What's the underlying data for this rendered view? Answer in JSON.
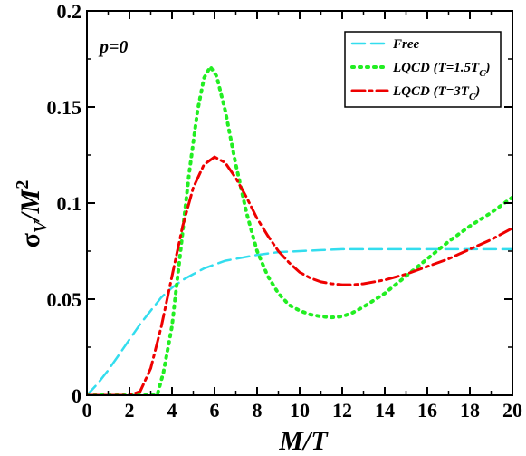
{
  "chart_data": {
    "type": "line",
    "xlabel": "M/T",
    "ylabel": {
      "base": "σ",
      "sub": "V",
      "mid": "/M",
      "sup": "2"
    },
    "annotation": "p=0",
    "xlim": [
      0,
      20
    ],
    "ylim": [
      0,
      0.2
    ],
    "x_ticks": [
      0,
      2,
      4,
      6,
      8,
      10,
      12,
      14,
      16,
      18,
      20
    ],
    "x_tick_labels": [
      "0",
      "2",
      "4",
      "6",
      "8",
      "10",
      "12",
      "14",
      "16",
      "18",
      "20"
    ],
    "y_ticks": [
      0,
      0.05,
      0.1,
      0.15,
      0.2
    ],
    "y_tick_labels": [
      "0",
      "0.05",
      "0.1",
      "0.15",
      "0.2"
    ],
    "grid": false,
    "legend_position": "top-right",
    "series": [
      {
        "name": "Free",
        "legend": {
          "main": "Free",
          "sub": "",
          "tail": ""
        },
        "color": "#33ddee",
        "style": "dashed",
        "x": [
          0,
          0.5,
          1,
          1.5,
          2,
          2.5,
          3,
          3.5,
          4,
          4.5,
          5,
          5.5,
          6,
          6.5,
          7,
          8,
          9,
          10,
          11,
          12,
          13,
          14,
          15,
          16,
          17,
          18,
          19,
          20
        ],
        "y": [
          0,
          0.006,
          0.013,
          0.021,
          0.029,
          0.037,
          0.044,
          0.051,
          0.056,
          0.06,
          0.063,
          0.066,
          0.068,
          0.07,
          0.071,
          0.073,
          0.0745,
          0.075,
          0.0755,
          0.076,
          0.076,
          0.076,
          0.076,
          0.076,
          0.076,
          0.076,
          0.076,
          0.076
        ]
      },
      {
        "name": "LQCD (T=1.5Tc)",
        "legend": {
          "main": "LQCD (T=1.5T",
          "sub": "C",
          "tail": ")"
        },
        "color": "#22ee22",
        "style": "dotted",
        "x": [
          0,
          3.3,
          3.6,
          4.0,
          4.4,
          4.8,
          5.2,
          5.5,
          5.8,
          6.1,
          6.5,
          7.0,
          7.5,
          8.0,
          8.5,
          9.0,
          9.5,
          10.0,
          10.5,
          11.0,
          11.5,
          12.0,
          12.5,
          13.0,
          14.0,
          15.0,
          16.0,
          17.0,
          18.0,
          19.0,
          20.0
        ],
        "y": [
          0,
          0,
          0.012,
          0.036,
          0.075,
          0.115,
          0.148,
          0.165,
          0.171,
          0.166,
          0.148,
          0.12,
          0.095,
          0.075,
          0.062,
          0.053,
          0.047,
          0.044,
          0.042,
          0.041,
          0.0405,
          0.041,
          0.043,
          0.046,
          0.053,
          0.062,
          0.071,
          0.08,
          0.088,
          0.095,
          0.103
        ]
      },
      {
        "name": "LQCD (T=3Tc)",
        "legend": {
          "main": "LQCD (T=3T",
          "sub": "C",
          "tail": ")"
        },
        "color": "#ee0000",
        "style": "dashdot",
        "x": [
          0,
          2.0,
          2.5,
          3.0,
          3.5,
          4.0,
          4.5,
          5.0,
          5.5,
          6.0,
          6.5,
          7.0,
          7.5,
          8.0,
          8.5,
          9.0,
          9.5,
          10.0,
          10.5,
          11.0,
          11.5,
          12.0,
          12.5,
          13.0,
          14.0,
          15.0,
          16.0,
          17.0,
          18.0,
          19.0,
          20.0
        ],
        "y": [
          0,
          0,
          0.002,
          0.014,
          0.036,
          0.062,
          0.088,
          0.108,
          0.12,
          0.124,
          0.121,
          0.113,
          0.103,
          0.092,
          0.083,
          0.075,
          0.069,
          0.064,
          0.061,
          0.059,
          0.058,
          0.0575,
          0.0575,
          0.058,
          0.06,
          0.063,
          0.067,
          0.071,
          0.076,
          0.081,
          0.087
        ]
      }
    ]
  }
}
